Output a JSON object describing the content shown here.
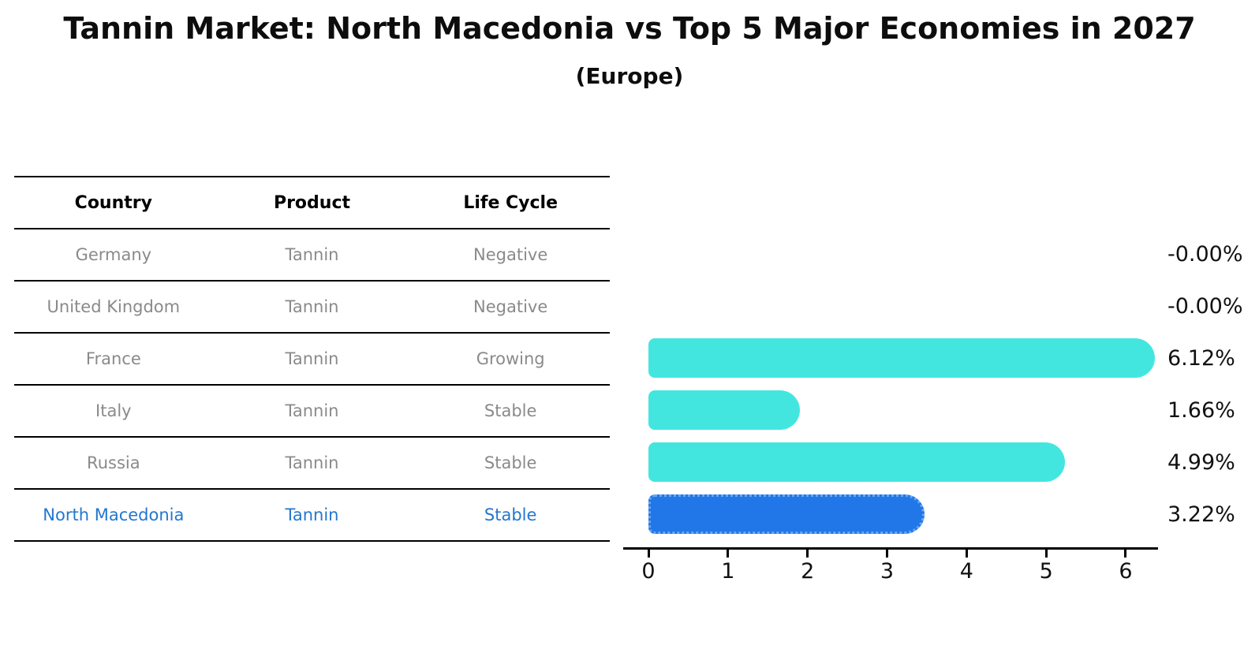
{
  "header": {
    "title": "Tannin Market: North Macedonia vs Top 5 Major Economies in 2027",
    "subtitle": "(Europe)"
  },
  "table": {
    "headers": [
      "Country",
      "Product",
      "Life Cycle"
    ],
    "rows": [
      {
        "country": "Germany",
        "product": "Tannin",
        "life_cycle": "Negative",
        "value_label": "-0.00%",
        "highlight": false
      },
      {
        "country": "United Kingdom",
        "product": "Tannin",
        "life_cycle": "Negative",
        "value_label": "-0.00%",
        "highlight": false
      },
      {
        "country": "France",
        "product": "Tannin",
        "life_cycle": "Growing",
        "value_label": "6.12%",
        "highlight": false
      },
      {
        "country": "Italy",
        "product": "Tannin",
        "life_cycle": "Stable",
        "value_label": "1.66%",
        "highlight": false
      },
      {
        "country": "Russia",
        "product": "Tannin",
        "life_cycle": "Stable",
        "value_label": "4.99%",
        "highlight": false
      },
      {
        "country": "North Macedonia",
        "product": "Tannin",
        "life_cycle": "Stable",
        "value_label": "3.22%",
        "highlight": true
      }
    ]
  },
  "chart_data": {
    "type": "bar",
    "orientation": "horizontal",
    "title": "Tannin Market: North Macedonia vs Top 5 Major Economies in 2027",
    "subtitle": "(Europe)",
    "categories": [
      "Germany",
      "United Kingdom",
      "France",
      "Italy",
      "Russia",
      "North Macedonia"
    ],
    "values": [
      -0.0,
      -0.0,
      6.12,
      1.66,
      4.99,
      3.22
    ],
    "value_labels": [
      "-0.00%",
      "-0.00%",
      "6.12%",
      "1.66%",
      "4.99%",
      "3.22%"
    ],
    "xticks": [
      0,
      1,
      2,
      3,
      4,
      5,
      6
    ],
    "xlim": [
      0,
      6.5
    ],
    "grid": false,
    "legend": "none",
    "bar_color": "#43E6DF",
    "highlight_color": "#2277E8",
    "highlight_index": 5
  },
  "colors": {
    "bar": "#43E6DF",
    "highlight_bar": "#2277E8",
    "highlight_text": "#2377cf",
    "table_text": "#8a8a8a",
    "axis": "#000000"
  }
}
